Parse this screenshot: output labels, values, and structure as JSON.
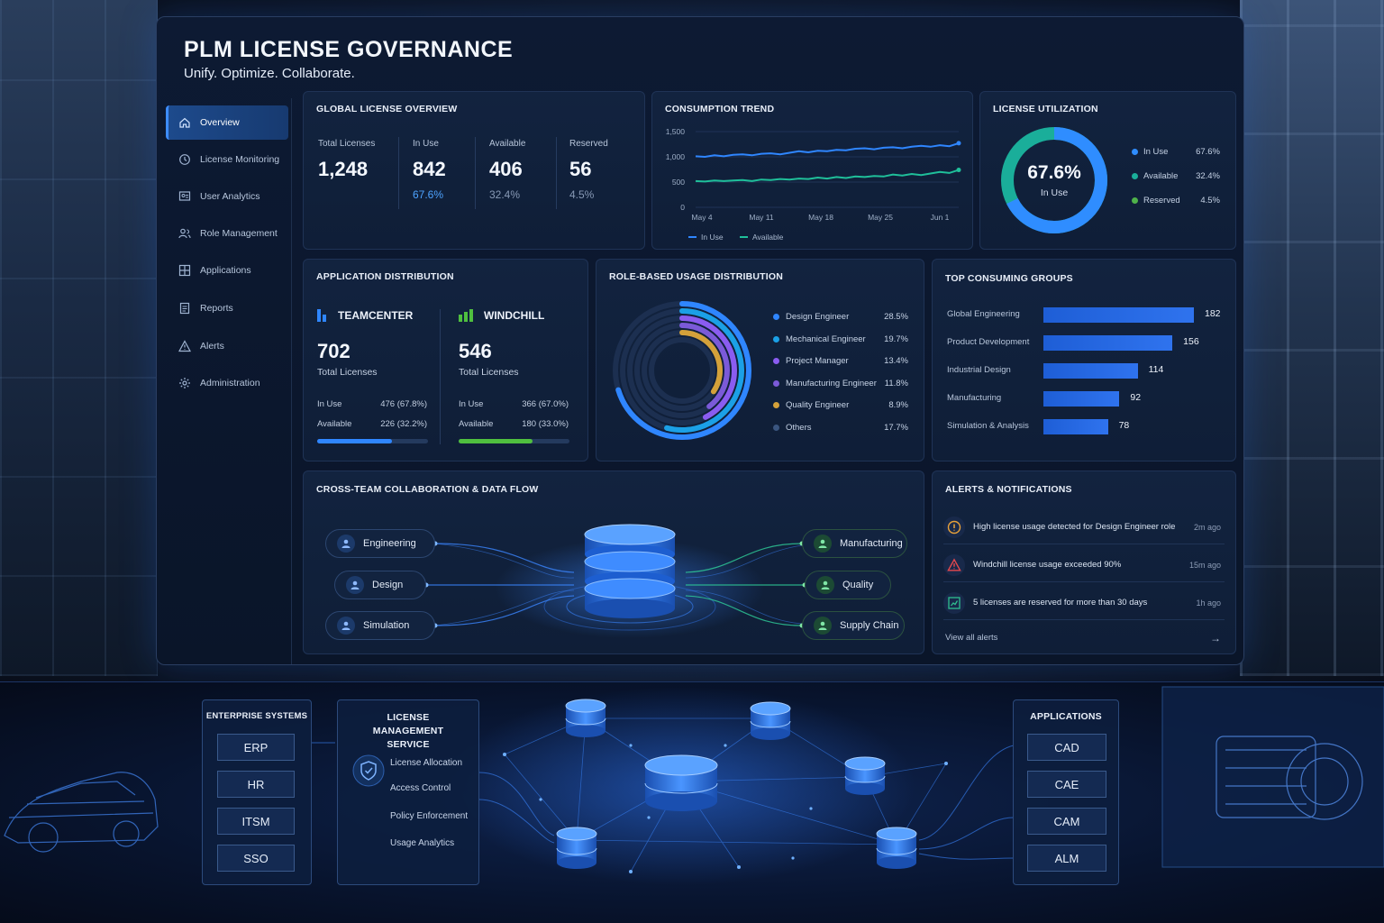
{
  "header": {
    "title": "PLM LICENSE GOVERNANCE",
    "subtitle": "Unify. Optimize. Collaborate."
  },
  "sidebar": {
    "items": [
      {
        "label": "Overview",
        "icon": "home-icon",
        "active": true
      },
      {
        "label": "License Monitoring",
        "icon": "clock-icon"
      },
      {
        "label": "User Analytics",
        "icon": "user-chart-icon"
      },
      {
        "label": "Role Management",
        "icon": "users-icon"
      },
      {
        "label": "Applications",
        "icon": "grid-icon"
      },
      {
        "label": "Reports",
        "icon": "document-icon"
      },
      {
        "label": "Alerts",
        "icon": "warning-icon"
      },
      {
        "label": "Administration",
        "icon": "gear-icon"
      }
    ]
  },
  "overview": {
    "title": "GLOBAL LICENSE OVERVIEW",
    "total_label": "Total Licenses",
    "total_value": "1,248",
    "inuse_label": "In Use",
    "inuse_value": "842",
    "inuse_pct": "67.6%",
    "available_label": "Available",
    "available_value": "406",
    "available_pct": "32.4%",
    "reserved_label": "Reserved",
    "reserved_value": "56",
    "reserved_pct": "4.5%"
  },
  "trend": {
    "title": "CONSUMPTION TREND",
    "legend_inuse": "In Use",
    "legend_available": "Available",
    "colors": {
      "inuse": "#2f86ff",
      "available": "#1fbf9a"
    }
  },
  "utilization": {
    "title": "LICENSE UTILIZATION",
    "center_value": "67.6%",
    "center_label": "In Use",
    "items": [
      {
        "label": "In Use",
        "value": "67.6%",
        "color": "#2f8dff"
      },
      {
        "label": "Available",
        "value": "32.4%",
        "color": "#1aae9a"
      },
      {
        "label": "Reserved",
        "value": "4.5%",
        "color": "#4fb24a"
      }
    ]
  },
  "app_dist": {
    "title": "APPLICATION DISTRIBUTION",
    "apps": [
      {
        "name": "TEAMCENTER",
        "total": "702",
        "total_label": "Total Licenses",
        "inuse_label": "In Use",
        "inuse": "476 (67.8%)",
        "available_label": "Available",
        "available": "226 (32.2%)",
        "fill": 0.678,
        "color": "#2f86ff"
      },
      {
        "name": "WINDCHILL",
        "total": "546",
        "total_label": "Total Licenses",
        "inuse_label": "In Use",
        "inuse": "366 (67.0%)",
        "available_label": "Available",
        "available": "180 (33.0%)",
        "fill": 0.67,
        "color": "#4fbf3f"
      }
    ]
  },
  "roles": {
    "title": "ROLE-BASED USAGE DISTRIBUTION",
    "items": [
      {
        "label": "Design Engineer",
        "value": "28.5%",
        "color": "#2f86ff"
      },
      {
        "label": "Mechanical Engineer",
        "value": "19.7%",
        "color": "#1ba0e6"
      },
      {
        "label": "Project Manager",
        "value": "13.4%",
        "color": "#8a5cf0"
      },
      {
        "label": "Manufacturing Engineer",
        "value": "11.8%",
        "color": "#7b5ad8"
      },
      {
        "label": "Quality Engineer",
        "value": "8.9%",
        "color": "#d4a13a"
      },
      {
        "label": "Others",
        "value": "17.7%",
        "color": "#3a557f"
      }
    ]
  },
  "chart_data": [
    {
      "type": "line",
      "title": "CONSUMPTION TREND",
      "x_ticks": [
        "May 4",
        "May 11",
        "May 18",
        "May 25",
        "Jun 1"
      ],
      "y_ticks": [
        "0",
        "500",
        "1,000",
        "1,500"
      ],
      "ylim": [
        0,
        1500
      ],
      "x": [
        0,
        1,
        2,
        3,
        4,
        5,
        6,
        7,
        8,
        9,
        10,
        11,
        12,
        13,
        14,
        15,
        16,
        17,
        18,
        19,
        20,
        21,
        22,
        23,
        24,
        25,
        26,
        27,
        28
      ],
      "series": [
        {
          "name": "In Use",
          "values": [
            1010,
            1000,
            1030,
            1010,
            1040,
            1050,
            1030,
            1060,
            1070,
            1050,
            1080,
            1110,
            1090,
            1120,
            1110,
            1140,
            1130,
            1160,
            1170,
            1150,
            1180,
            1190,
            1170,
            1200,
            1220,
            1200,
            1230,
            1210,
            1270
          ]
        },
        {
          "name": "Available",
          "values": [
            520,
            510,
            530,
            520,
            530,
            540,
            520,
            550,
            540,
            560,
            550,
            570,
            560,
            590,
            570,
            600,
            580,
            610,
            600,
            620,
            610,
            650,
            630,
            660,
            640,
            670,
            700,
            680,
            740
          ]
        }
      ]
    },
    {
      "type": "bar",
      "title": "TOP CONSUMING GROUPS",
      "categories": [
        "Global Engineering",
        "Product Development",
        "Industrial Design",
        "Manufacturing",
        "Simulation & Analysis"
      ],
      "values": [
        182,
        156,
        114,
        92,
        78
      ],
      "xlim": [
        0,
        200
      ]
    }
  ],
  "groups": {
    "title": "TOP CONSUMING GROUPS",
    "value_labels": [
      "182",
      "156",
      "114",
      "92",
      "78"
    ]
  },
  "collab": {
    "title": "CROSS-TEAM COLLABORATION & DATA FLOW",
    "left": [
      "Engineering",
      "Design",
      "Simulation"
    ],
    "right": [
      "Manufacturing",
      "Quality",
      "Supply Chain"
    ]
  },
  "alerts": {
    "title": "ALERTS & NOTIFICATIONS",
    "items": [
      {
        "text": "High license usage detected for Design Engineer role",
        "time": "2m ago",
        "icon": "warning-circle-icon",
        "color": "#e8a23a"
      },
      {
        "text": "Windchill license usage exceeded 90%",
        "time": "15m ago",
        "icon": "warning-triangle-icon",
        "color": "#e5484d"
      },
      {
        "text": "5 licenses are reserved for more than 30 days",
        "time": "1h ago",
        "icon": "chart-icon",
        "color": "#2fbf8f"
      }
    ],
    "view_all": "View all alerts"
  },
  "architecture": {
    "enterprise_title": "ENTERPRISE SYSTEMS",
    "enterprise": [
      "ERP",
      "HR",
      "ITSM",
      "SSO"
    ],
    "service_title": "LICENSE MANAGEMENT SERVICE",
    "service_items": [
      "License Allocation",
      "Access Control",
      "Policy Enforcement",
      "Usage Analytics"
    ],
    "apps_title": "APPLICATIONS",
    "apps": [
      "CAD",
      "CAE",
      "CAM",
      "ALM"
    ]
  }
}
